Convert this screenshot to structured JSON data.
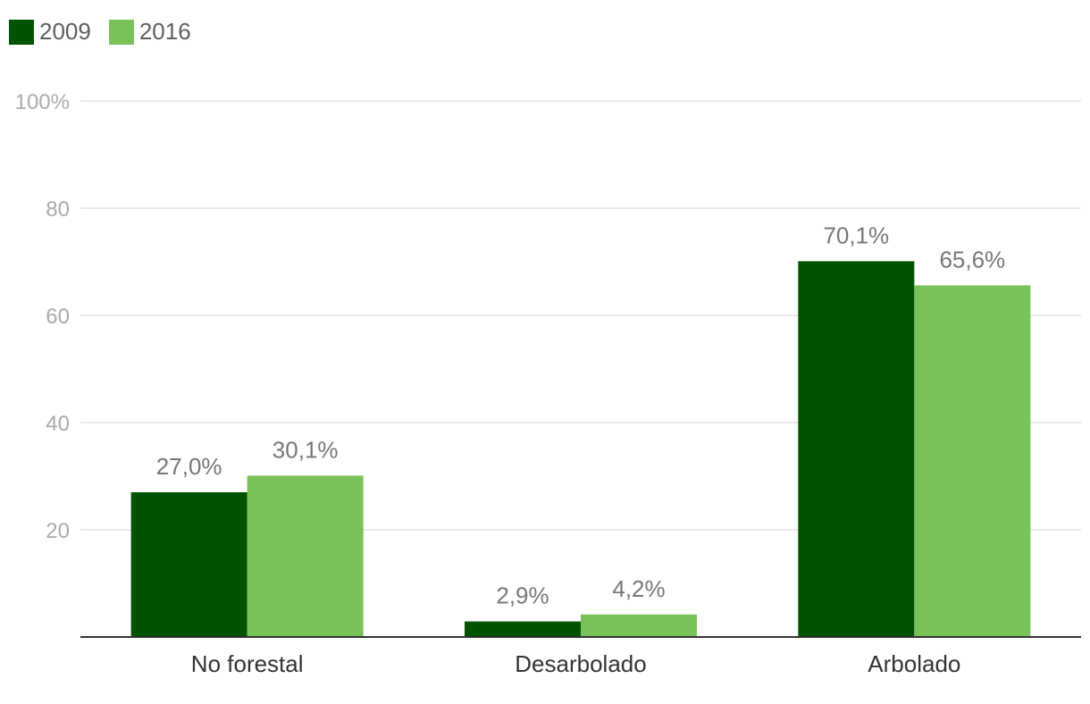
{
  "chart_data": {
    "type": "bar",
    "categories": [
      "No forestal",
      "Desarbolado",
      "Arbolado"
    ],
    "series": [
      {
        "name": "2009",
        "values": [
          27.0,
          2.9,
          70.1
        ],
        "labels": [
          "27,0%",
          "2,9%",
          "70,1%"
        ],
        "color": "#005300"
      },
      {
        "name": "2016",
        "values": [
          30.1,
          4.2,
          65.6
        ],
        "labels": [
          "30,1%",
          "4,2%",
          "65,6%"
        ],
        "color": "#79c159"
      }
    ],
    "ylim": [
      0,
      100
    ],
    "yticks": [
      20,
      40,
      60,
      80,
      100
    ],
    "ytick_labels": [
      "20",
      "40",
      "60",
      "80",
      "100%"
    ],
    "grid": true,
    "legend": "top-left",
    "title": "",
    "xlabel": "",
    "ylabel": ""
  }
}
